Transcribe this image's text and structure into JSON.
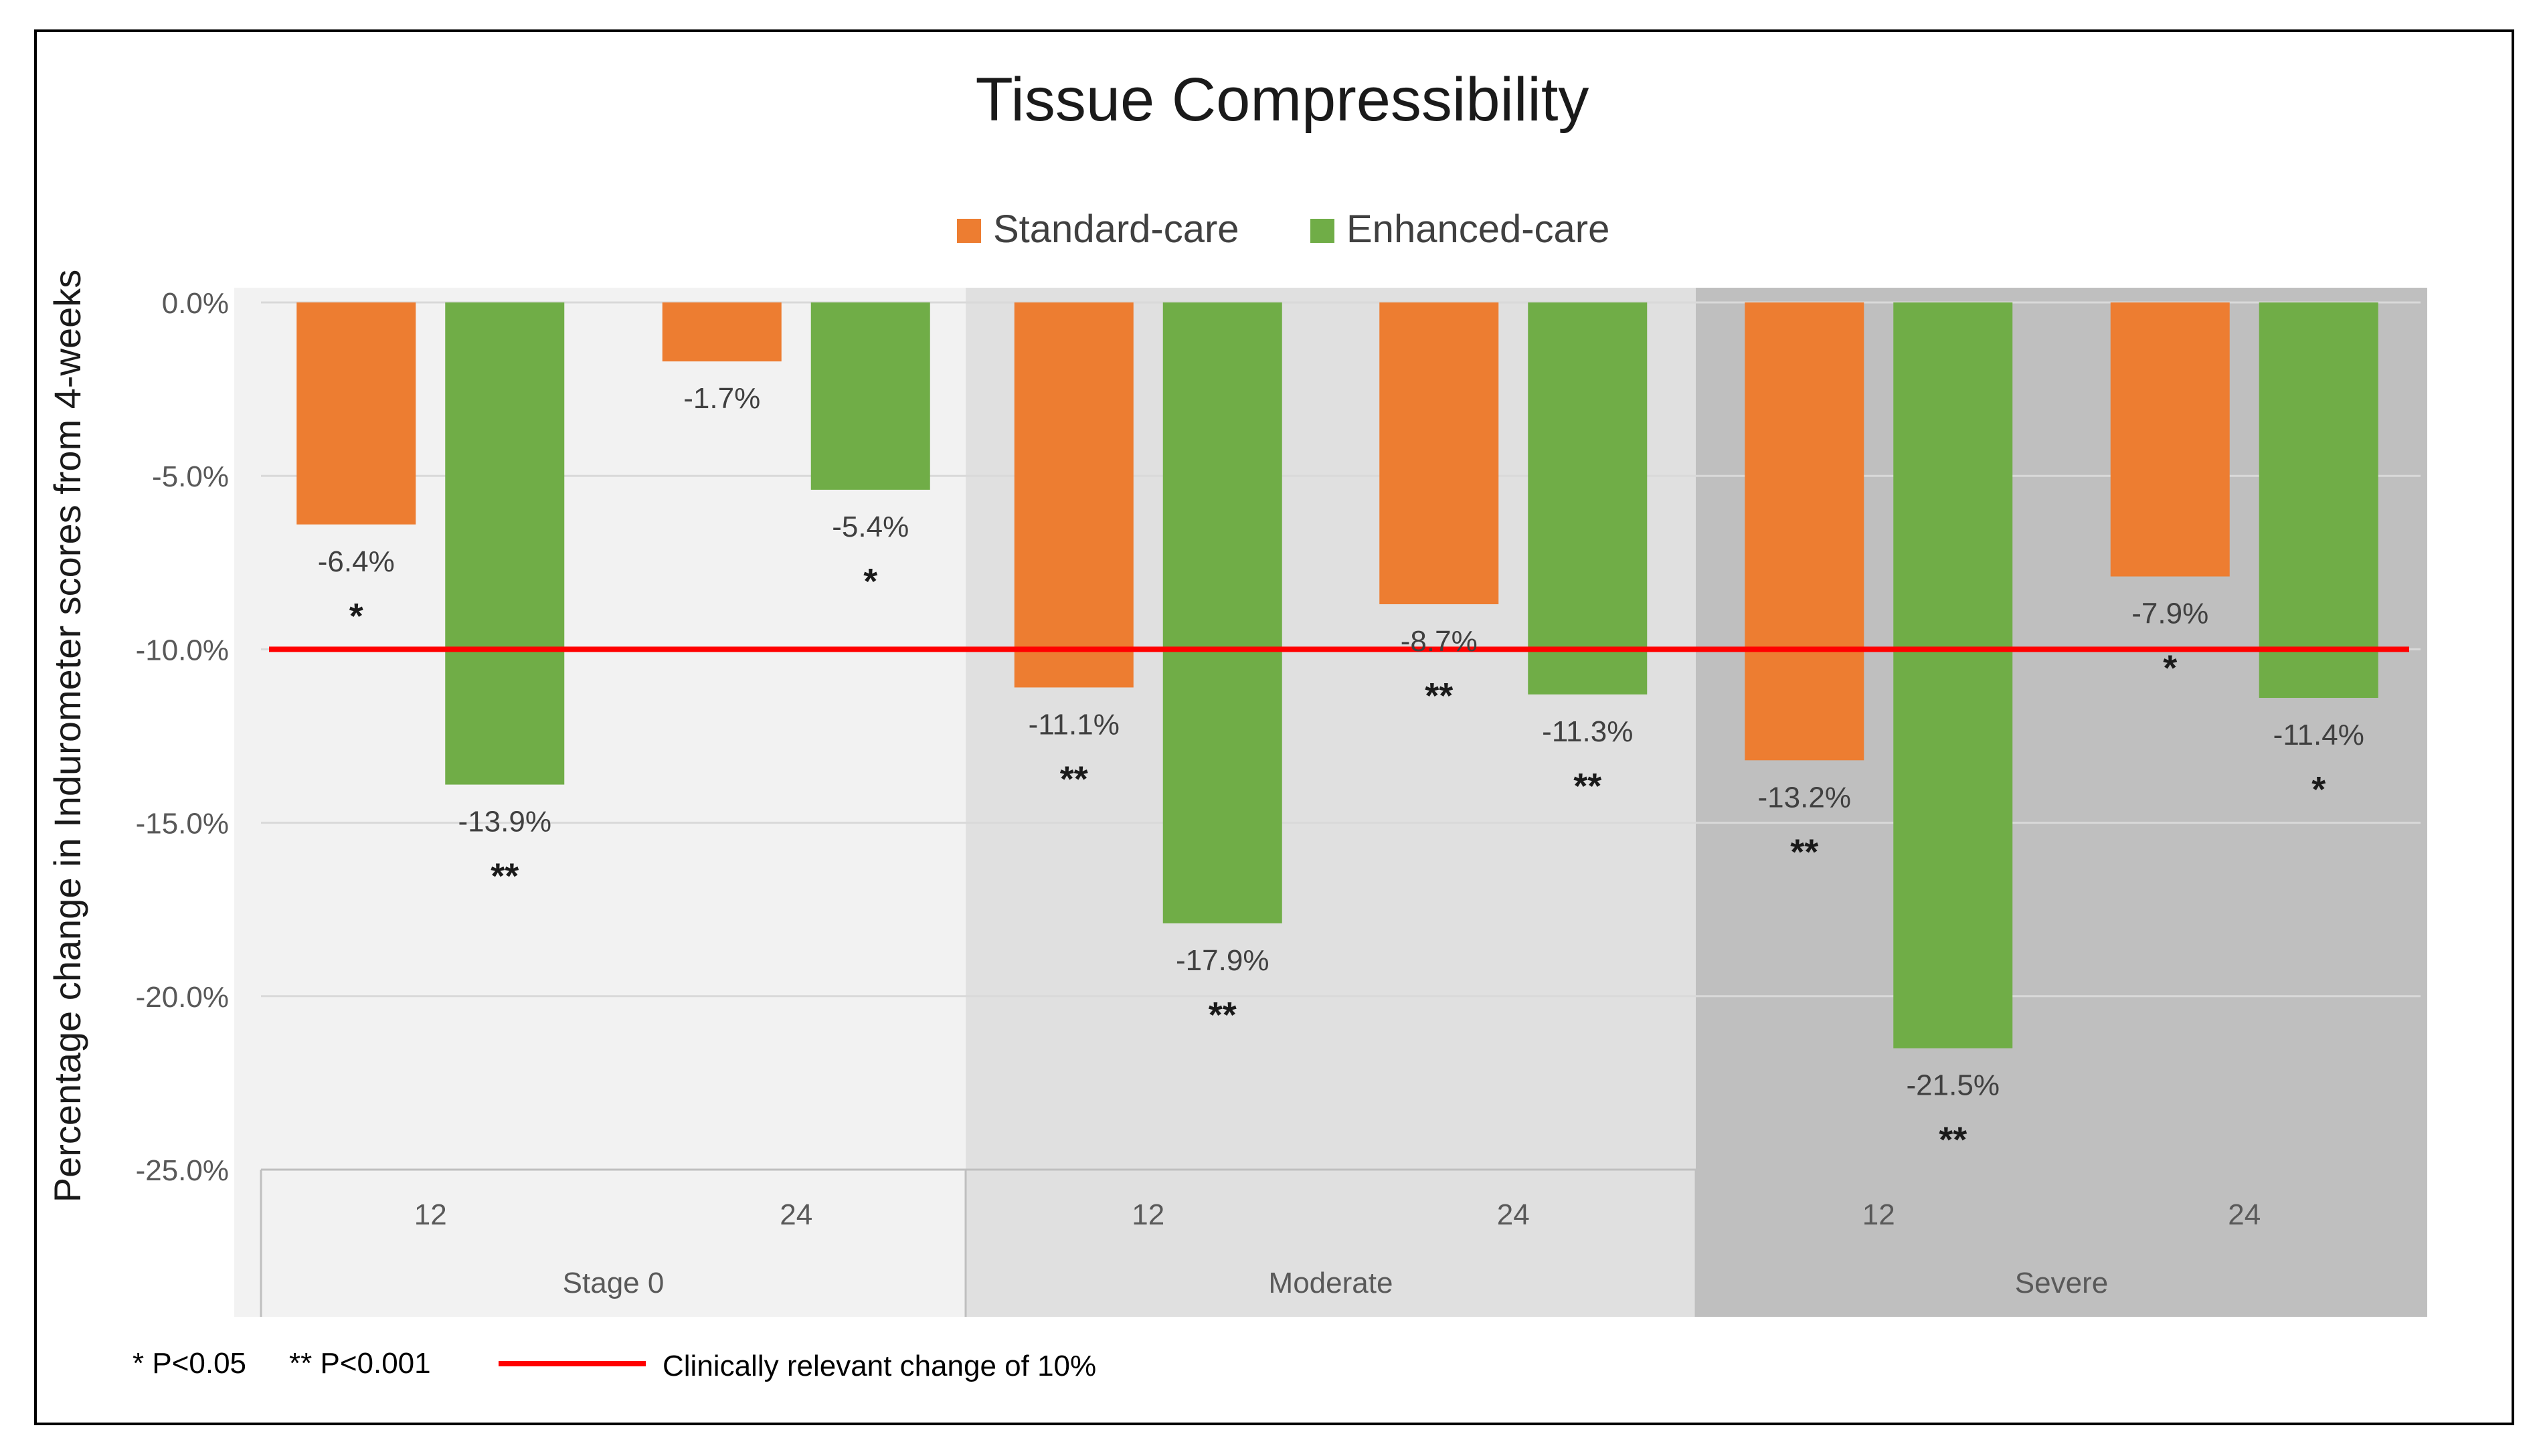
{
  "chart_data": {
    "type": "bar",
    "title": "Tissue Compressibility",
    "ylabel": "Percentage change in Indurometer scores from 4-weeks",
    "ylim": [
      -25,
      0
    ],
    "yticks": [
      0,
      -5,
      -10,
      -15,
      -20,
      -25
    ],
    "ytick_labels": [
      "0.0%",
      "-5.0%",
      "-10.0%",
      "-15.0%",
      "-20.0%",
      "-25.0%"
    ],
    "grid": true,
    "legend_position": "top-center",
    "groups": [
      {
        "label": "Stage 0",
        "shade": "#f2f2f2",
        "categories": [
          "12",
          "24"
        ]
      },
      {
        "label": "Moderate",
        "shade": "#e0e0e0",
        "categories": [
          "12",
          "24"
        ]
      },
      {
        "label": "Severe",
        "shade": "#bfbfbf",
        "categories": [
          "12",
          "24"
        ]
      }
    ],
    "series": [
      {
        "name": "Standard-care",
        "color": "#ed7d31",
        "values": [
          -6.4,
          -1.7,
          -11.1,
          -8.7,
          -13.2,
          -7.9
        ],
        "labels": [
          "-6.4%",
          "-1.7%",
          "-11.1%",
          "-8.7%",
          "-13.2%",
          "-7.9%"
        ],
        "significance": [
          "*",
          "",
          "**",
          "**",
          "**",
          "*"
        ]
      },
      {
        "name": "Enhanced-care",
        "color": "#70ad47",
        "values": [
          -13.9,
          -5.4,
          -17.9,
          -11.3,
          -21.5,
          -11.4
        ],
        "labels": [
          "-13.9%",
          "-5.4%",
          "-17.9%",
          "-11.3%",
          "-21.5%",
          "-11.4%"
        ],
        "significance": [
          "**",
          "*",
          "**",
          "**",
          "**",
          "*"
        ]
      }
    ],
    "reference_line": {
      "value": -10,
      "color": "#ff0000",
      "label": "Clinically relevant change of 10%"
    },
    "footnotes": {
      "p05": "* P<0.05",
      "p001": "** P<0.001"
    }
  }
}
